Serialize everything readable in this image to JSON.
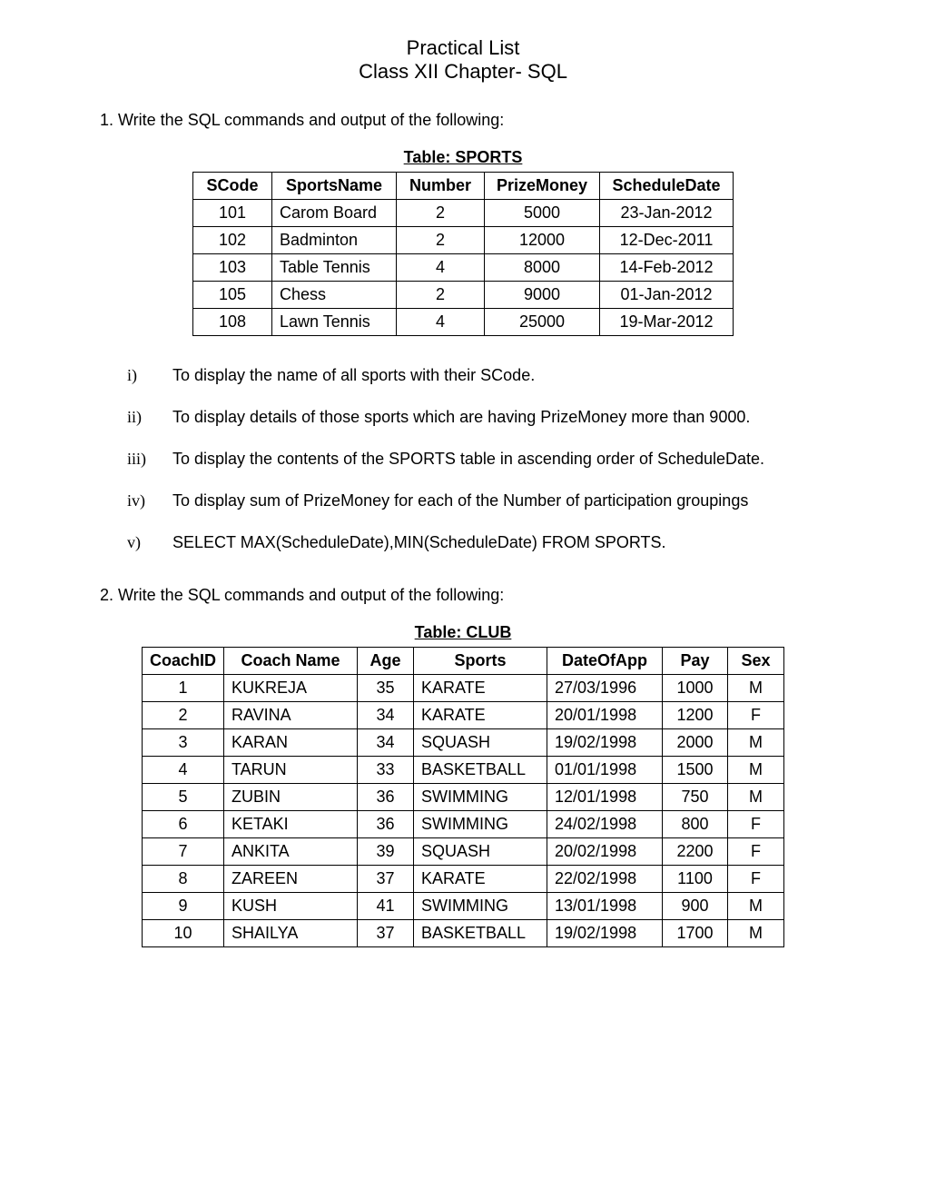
{
  "header": {
    "title": "Practical List",
    "subtitle": "Class XII  Chapter- SQL"
  },
  "q1": {
    "prompt": "1. Write the SQL commands and output of the following:",
    "table_caption": "Table: SPORTS",
    "columns": [
      "SCode",
      "SportsName",
      "Number",
      "PrizeMoney",
      "ScheduleDate"
    ],
    "rows": [
      [
        "101",
        "Carom Board",
        "2",
        "5000",
        "23-Jan-2012"
      ],
      [
        "102",
        "Badminton",
        "2",
        "12000",
        "12-Dec-2011"
      ],
      [
        "103",
        "Table Tennis",
        "4",
        "8000",
        "14-Feb-2012"
      ],
      [
        "105",
        "Chess",
        "2",
        "9000",
        "01-Jan-2012"
      ],
      [
        "108",
        "Lawn Tennis",
        "4",
        "25000",
        "19-Mar-2012"
      ]
    ],
    "items": [
      {
        "marker": "i)",
        "text": "To display the name of all sports with their SCode."
      },
      {
        "marker": "ii)",
        "text": "To display details of those sports which are having PrizeMoney more than 9000."
      },
      {
        "marker": "iii)",
        "text": "To display the contents of the SPORTS table in ascending order of ScheduleDate."
      },
      {
        "marker": "iv)",
        "text": "To display sum of PrizeMoney for each of the Number of participation groupings"
      },
      {
        "marker": "v)",
        "text": "SELECT MAX(ScheduleDate),MIN(ScheduleDate) FROM SPORTS."
      }
    ]
  },
  "q2": {
    "prompt": "2. Write the SQL commands and output of the following:",
    "table_caption": "Table: CLUB",
    "columns": [
      "CoachID",
      "Coach Name",
      "Age",
      "Sports",
      "DateOfApp",
      "Pay",
      "Sex"
    ],
    "rows": [
      [
        "1",
        "KUKREJA",
        "35",
        "KARATE",
        "27/03/1996",
        "1000",
        "M"
      ],
      [
        "2",
        "RAVINA",
        "34",
        "KARATE",
        "20/01/1998",
        "1200",
        "F"
      ],
      [
        "3",
        "KARAN",
        "34",
        "SQUASH",
        "19/02/1998",
        "2000",
        "M"
      ],
      [
        "4",
        "TARUN",
        "33",
        "BASKETBALL",
        "01/01/1998",
        "1500",
        "M"
      ],
      [
        "5",
        "ZUBIN",
        "36",
        "SWIMMING",
        "12/01/1998",
        "750",
        "M"
      ],
      [
        "6",
        "KETAKI",
        "36",
        "SWIMMING",
        "24/02/1998",
        "800",
        "F"
      ],
      [
        "7",
        "ANKITA",
        "39",
        "SQUASH",
        "20/02/1998",
        "2200",
        "F"
      ],
      [
        "8",
        "ZAREEN",
        "37",
        "KARATE",
        "22/02/1998",
        "1100",
        "F"
      ],
      [
        "9",
        "KUSH",
        "41",
        "SWIMMING",
        "13/01/1998",
        "900",
        "M"
      ],
      [
        "10",
        "SHAILYA",
        "37",
        "BASKETBALL",
        "19/02/1998",
        "1700",
        "M"
      ]
    ]
  }
}
